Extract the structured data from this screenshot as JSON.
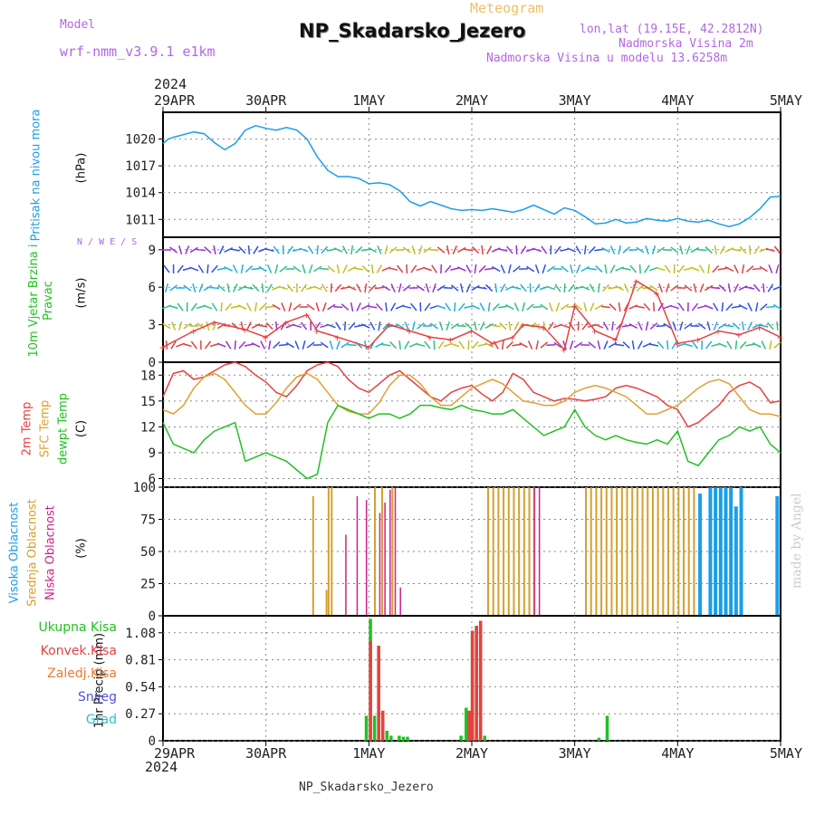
{
  "header": {
    "model_label": "Model",
    "model_value": "wrf-nmm_v3.9.1  e1km",
    "subtitle": "Meteogram",
    "title": "NP_Skadarsko_Jezero",
    "lonlat": "lon,lat (19.15E, 42.2812N)",
    "elevation": "Nadmorska Visina 2m",
    "model_elevation": "Nadmorska Visina u modelu 13.6258m",
    "year": "2024",
    "footer_station": "NP_Skadarsko_Jezero",
    "watermark": "made by Angel"
  },
  "colors": {
    "pressure": "#1a9ee8",
    "temp2m": "#e84040",
    "sfctemp": "#e0a030",
    "dewpt": "#22c022",
    "high_cloud": "#1a9ee8",
    "mid_cloud": "#d4a030",
    "low_cloud": "#cc2288",
    "total_precip": "#22c022",
    "conv_precip": "#e84040",
    "grid": "#888888"
  },
  "chart_data": [
    {
      "type": "line",
      "panel": "pressure",
      "ylabel": "Pritisak na nivou mora",
      "unit": "(hPa)",
      "x_ticks": [
        "29APR",
        "30APR",
        "1MAY",
        "2MAY",
        "3MAY",
        "4MAY",
        "5MAY"
      ],
      "x_range_days": [
        0,
        6
      ],
      "ylim": [
        1009,
        1023
      ],
      "yticks": [
        1011,
        1014,
        1017,
        1020
      ],
      "grid": true,
      "series": [
        {
          "x": [
            0,
            0.05,
            0.1,
            0.2,
            0.3,
            0.4,
            0.5,
            0.6,
            0.7,
            0.8,
            0.9,
            1.0,
            1.1,
            1.2,
            1.3,
            1.4,
            1.5,
            1.6,
            1.7,
            1.8,
            1.9,
            2.0,
            2.1,
            2.2,
            2.3,
            2.4,
            2.5,
            2.6,
            2.7,
            2.8,
            2.9,
            3.0,
            3.1,
            3.2,
            3.3,
            3.4,
            3.5,
            3.6,
            3.7,
            3.8,
            3.9,
            4.0,
            4.1,
            4.2,
            4.3,
            4.4,
            4.5,
            4.6,
            4.7,
            4.8,
            4.9,
            5.0,
            5.1,
            5.2,
            5.3,
            5.4,
            5.5,
            5.6,
            5.7,
            5.8,
            5.9,
            6.0
          ],
          "values": [
            1019.5,
            1020.0,
            1020.2,
            1020.5,
            1020.8,
            1020.6,
            1019.6,
            1018.8,
            1019.5,
            1021.0,
            1021.5,
            1021.2,
            1021.0,
            1021.3,
            1021.0,
            1020.0,
            1018.0,
            1016.5,
            1015.8,
            1015.8,
            1015.6,
            1015.0,
            1015.1,
            1014.9,
            1014.2,
            1013.0,
            1012.5,
            1013.0,
            1012.6,
            1012.2,
            1012.0,
            1012.1,
            1012.0,
            1012.2,
            1012.0,
            1011.8,
            1012.1,
            1012.6,
            1012.1,
            1011.6,
            1012.3,
            1012.0,
            1011.3,
            1010.5,
            1010.6,
            1011.0,
            1010.6,
            1010.7,
            1011.1,
            1010.9,
            1010.8,
            1011.1,
            1010.8,
            1010.7,
            1010.9,
            1010.5,
            1010.2,
            1010.5,
            1011.2,
            1012.2,
            1013.5,
            1013.6
          ]
        }
      ]
    },
    {
      "type": "line",
      "panel": "wind",
      "ylabel": "10m Vjetar Brzina i Pravac",
      "unit": "(m/s)",
      "compass": "N / W E / S",
      "ylim": [
        0,
        10
      ],
      "yticks": [
        0,
        3,
        6,
        9
      ],
      "grid": true,
      "series": [
        {
          "x": [
            0,
            0.3,
            0.5,
            0.8,
            1.0,
            1.2,
            1.4,
            1.5,
            1.7,
            2.0,
            2.2,
            2.4,
            2.6,
            2.8,
            3.0,
            3.2,
            3.4,
            3.5,
            3.7,
            3.9,
            4.0,
            4.2,
            4.4,
            4.6,
            4.8,
            5.0,
            5.2,
            5.4,
            5.6,
            5.8,
            6.0
          ],
          "values": [
            1.2,
            2.5,
            3.2,
            2.6,
            2.0,
            3.2,
            3.8,
            2.5,
            2.0,
            1.2,
            3.0,
            2.5,
            2.0,
            1.8,
            2.5,
            1.5,
            2.0,
            3.0,
            2.8,
            1.0,
            4.5,
            2.5,
            1.8,
            6.5,
            5.5,
            1.5,
            1.8,
            2.5,
            2.2,
            2.8,
            2.0
          ]
        }
      ]
    },
    {
      "type": "line",
      "panel": "temperature",
      "ylabel_parts": [
        "2m Temp",
        "SFC Temp",
        "dewpt Temp"
      ],
      "unit": "(C)",
      "ylim": [
        5,
        19.5
      ],
      "yticks": [
        6,
        9,
        12,
        15,
        18
      ],
      "grid": true,
      "series": [
        {
          "name": "2m Temp",
          "x": [
            0,
            0.1,
            0.2,
            0.3,
            0.4,
            0.5,
            0.6,
            0.7,
            0.8,
            0.9,
            1.0,
            1.1,
            1.2,
            1.3,
            1.4,
            1.5,
            1.6,
            1.7,
            1.8,
            1.9,
            2.0,
            2.1,
            2.2,
            2.3,
            2.4,
            2.5,
            2.6,
            2.7,
            2.8,
            2.9,
            3.0,
            3.1,
            3.2,
            3.3,
            3.4,
            3.5,
            3.6,
            3.7,
            3.8,
            3.9,
            4.0,
            4.1,
            4.2,
            4.3,
            4.4,
            4.5,
            4.6,
            4.7,
            4.8,
            4.9,
            5.0,
            5.1,
            5.2,
            5.3,
            5.4,
            5.5,
            5.6,
            5.7,
            5.8,
            5.9,
            6.0
          ],
          "values": [
            15.5,
            18.2,
            18.5,
            17.5,
            17.8,
            18.5,
            19.2,
            19.5,
            19.0,
            18.0,
            17.2,
            16.0,
            15.5,
            16.8,
            18.5,
            19.2,
            19.5,
            19.0,
            17.5,
            16.5,
            16.0,
            17.0,
            18.0,
            18.5,
            17.5,
            16.5,
            15.5,
            15.0,
            16.0,
            16.5,
            16.8,
            15.8,
            15.0,
            16.0,
            18.2,
            17.5,
            16.0,
            15.5,
            15.0,
            15.3,
            15.2,
            15.0,
            15.2,
            15.5,
            16.5,
            16.8,
            16.5,
            16.0,
            15.5,
            14.5,
            14.0,
            12.0,
            12.5,
            13.5,
            14.5,
            16.0,
            16.8,
            17.2,
            16.5,
            14.8,
            15.0
          ]
        },
        {
          "name": "SFC Temp",
          "x": [
            0,
            0.1,
            0.2,
            0.3,
            0.4,
            0.5,
            0.6,
            0.7,
            0.8,
            0.9,
            1.0,
            1.1,
            1.2,
            1.3,
            1.4,
            1.5,
            1.6,
            1.7,
            1.8,
            1.9,
            2.0,
            2.1,
            2.2,
            2.3,
            2.4,
            2.5,
            2.6,
            2.7,
            2.8,
            2.9,
            3.0,
            3.1,
            3.2,
            3.3,
            3.4,
            3.5,
            3.6,
            3.7,
            3.8,
            3.9,
            4.0,
            4.1,
            4.2,
            4.3,
            4.4,
            4.5,
            4.6,
            4.7,
            4.8,
            4.9,
            5.0,
            5.1,
            5.2,
            5.3,
            5.4,
            5.5,
            5.6,
            5.7,
            5.8,
            5.9,
            6.0
          ],
          "values": [
            14.0,
            13.5,
            14.5,
            16.5,
            17.8,
            18.2,
            17.5,
            16.0,
            14.5,
            13.5,
            13.5,
            14.8,
            16.5,
            17.8,
            18.2,
            17.5,
            16.0,
            14.5,
            13.8,
            13.5,
            13.5,
            14.8,
            16.8,
            18.0,
            18.0,
            17.0,
            15.5,
            14.5,
            14.5,
            15.5,
            16.5,
            17.0,
            17.5,
            17.0,
            16.0,
            15.0,
            14.8,
            14.5,
            14.5,
            15.0,
            16.0,
            16.5,
            16.8,
            16.5,
            16.0,
            15.5,
            14.5,
            13.5,
            13.5,
            14.0,
            14.5,
            15.5,
            16.5,
            17.2,
            17.5,
            17.0,
            15.5,
            14.0,
            13.5,
            13.5,
            13.2
          ]
        },
        {
          "name": "dewpt Temp",
          "x": [
            0,
            0.1,
            0.2,
            0.3,
            0.4,
            0.5,
            0.6,
            0.7,
            0.8,
            0.9,
            1.0,
            1.1,
            1.2,
            1.3,
            1.4,
            1.5,
            1.6,
            1.7,
            1.8,
            1.9,
            2.0,
            2.1,
            2.2,
            2.3,
            2.4,
            2.5,
            2.6,
            2.7,
            2.8,
            2.9,
            3.0,
            3.1,
            3.2,
            3.3,
            3.4,
            3.5,
            3.6,
            3.7,
            3.8,
            3.9,
            4.0,
            4.1,
            4.2,
            4.3,
            4.4,
            4.5,
            4.6,
            4.7,
            4.8,
            4.9,
            5.0,
            5.1,
            5.2,
            5.3,
            5.4,
            5.5,
            5.6,
            5.7,
            5.8,
            5.9,
            6.0
          ],
          "values": [
            12.5,
            10.0,
            9.5,
            9.0,
            10.5,
            11.5,
            12.0,
            12.5,
            8.0,
            8.5,
            9.0,
            8.5,
            8.0,
            7.0,
            6.0,
            6.5,
            12.5,
            14.5,
            14.0,
            13.5,
            13.0,
            13.5,
            13.5,
            13.0,
            13.5,
            14.5,
            14.5,
            14.2,
            14.0,
            14.5,
            14.0,
            13.8,
            13.5,
            13.5,
            14.0,
            13.0,
            12.0,
            11.0,
            11.5,
            12.0,
            14.0,
            12.0,
            11.0,
            10.5,
            11.0,
            10.5,
            10.2,
            10.0,
            10.5,
            10.0,
            11.5,
            8.0,
            7.5,
            9.0,
            10.5,
            11.0,
            12.0,
            11.5,
            12.0,
            10.0,
            9.0
          ]
        }
      ]
    },
    {
      "type": "bar",
      "panel": "clouds",
      "ylabel_parts": [
        "Visoka Oblacnost",
        "Srednja Oblacnost",
        "Niska Oblacnost"
      ],
      "unit": "(%)",
      "ylim": [
        0,
        100
      ],
      "yticks": [
        0,
        25,
        50,
        75,
        100
      ],
      "grid": true,
      "series": [
        {
          "name": "Visoka Oblacnost",
          "x": [
            5.2,
            5.3,
            5.35,
            5.4,
            5.45,
            5.5,
            5.55,
            5.6,
            5.95
          ],
          "values": [
            95,
            100,
            100,
            100,
            100,
            100,
            85,
            100,
            93
          ]
        },
        {
          "name": "Srednja Oblacnost",
          "x": [
            1.45,
            1.58,
            1.6,
            1.63,
            2.05,
            2.12,
            2.22,
            3.15,
            3.2,
            3.25,
            3.3,
            3.35,
            3.4,
            3.45,
            3.5,
            3.55,
            3.6,
            4.1,
            4.15,
            4.2,
            4.25,
            4.3,
            4.35,
            4.4,
            4.45,
            4.5,
            4.55,
            4.6,
            4.65,
            4.7,
            4.75,
            4.8,
            4.85,
            4.9,
            4.95,
            5.0,
            5.05,
            5.1,
            5.15
          ],
          "values": [
            93,
            20,
            100,
            100,
            100,
            100,
            100,
            100,
            100,
            100,
            100,
            100,
            100,
            100,
            100,
            100,
            100,
            100,
            100,
            100,
            100,
            100,
            100,
            100,
            100,
            100,
            100,
            100,
            100,
            100,
            100,
            100,
            100,
            100,
            100,
            100,
            100,
            100,
            100
          ]
        },
        {
          "name": "Niska Oblacnost",
          "x": [
            1.77,
            1.88,
            1.97,
            2.1,
            2.15,
            2.2,
            2.25,
            2.3,
            3.6,
            3.65
          ],
          "values": [
            63,
            93,
            90,
            80,
            88,
            98,
            100,
            22,
            100,
            100
          ]
        }
      ]
    },
    {
      "type": "bar",
      "panel": "precipitation",
      "ylabel": "1hr Precip (mm)",
      "legend": [
        "Ukupna Kisa",
        "Konvek.Kisa",
        "Zaledj.Kisa",
        "Snijeg",
        "Grad"
      ],
      "ylim": [
        0,
        1.25
      ],
      "yticks": [
        0,
        0.27,
        0.54,
        0.81,
        1.08
      ],
      "grid": true,
      "series": [
        {
          "name": "Ukupna Kisa",
          "x": [
            1.96,
            2.0,
            2.04,
            2.08,
            2.12,
            2.16,
            2.2,
            2.28,
            2.32,
            2.36,
            2.88,
            2.93,
            2.96,
            2.99,
            3.03,
            3.07,
            3.11,
            4.22,
            4.3
          ],
          "values": [
            0.25,
            1.22,
            0.25,
            0.95,
            0.3,
            0.1,
            0.05,
            0.05,
            0.04,
            0.04,
            0.05,
            0.33,
            0.3,
            1.1,
            1.15,
            1.2,
            0.05,
            0.03,
            0.25
          ]
        },
        {
          "name": "Konvek.Kisa",
          "x": [
            2.0,
            2.08,
            2.12,
            2.96,
            2.99,
            3.03,
            3.07
          ],
          "values": [
            1.0,
            0.95,
            0.3,
            0.3,
            1.1,
            1.15,
            1.2
          ]
        }
      ]
    }
  ]
}
